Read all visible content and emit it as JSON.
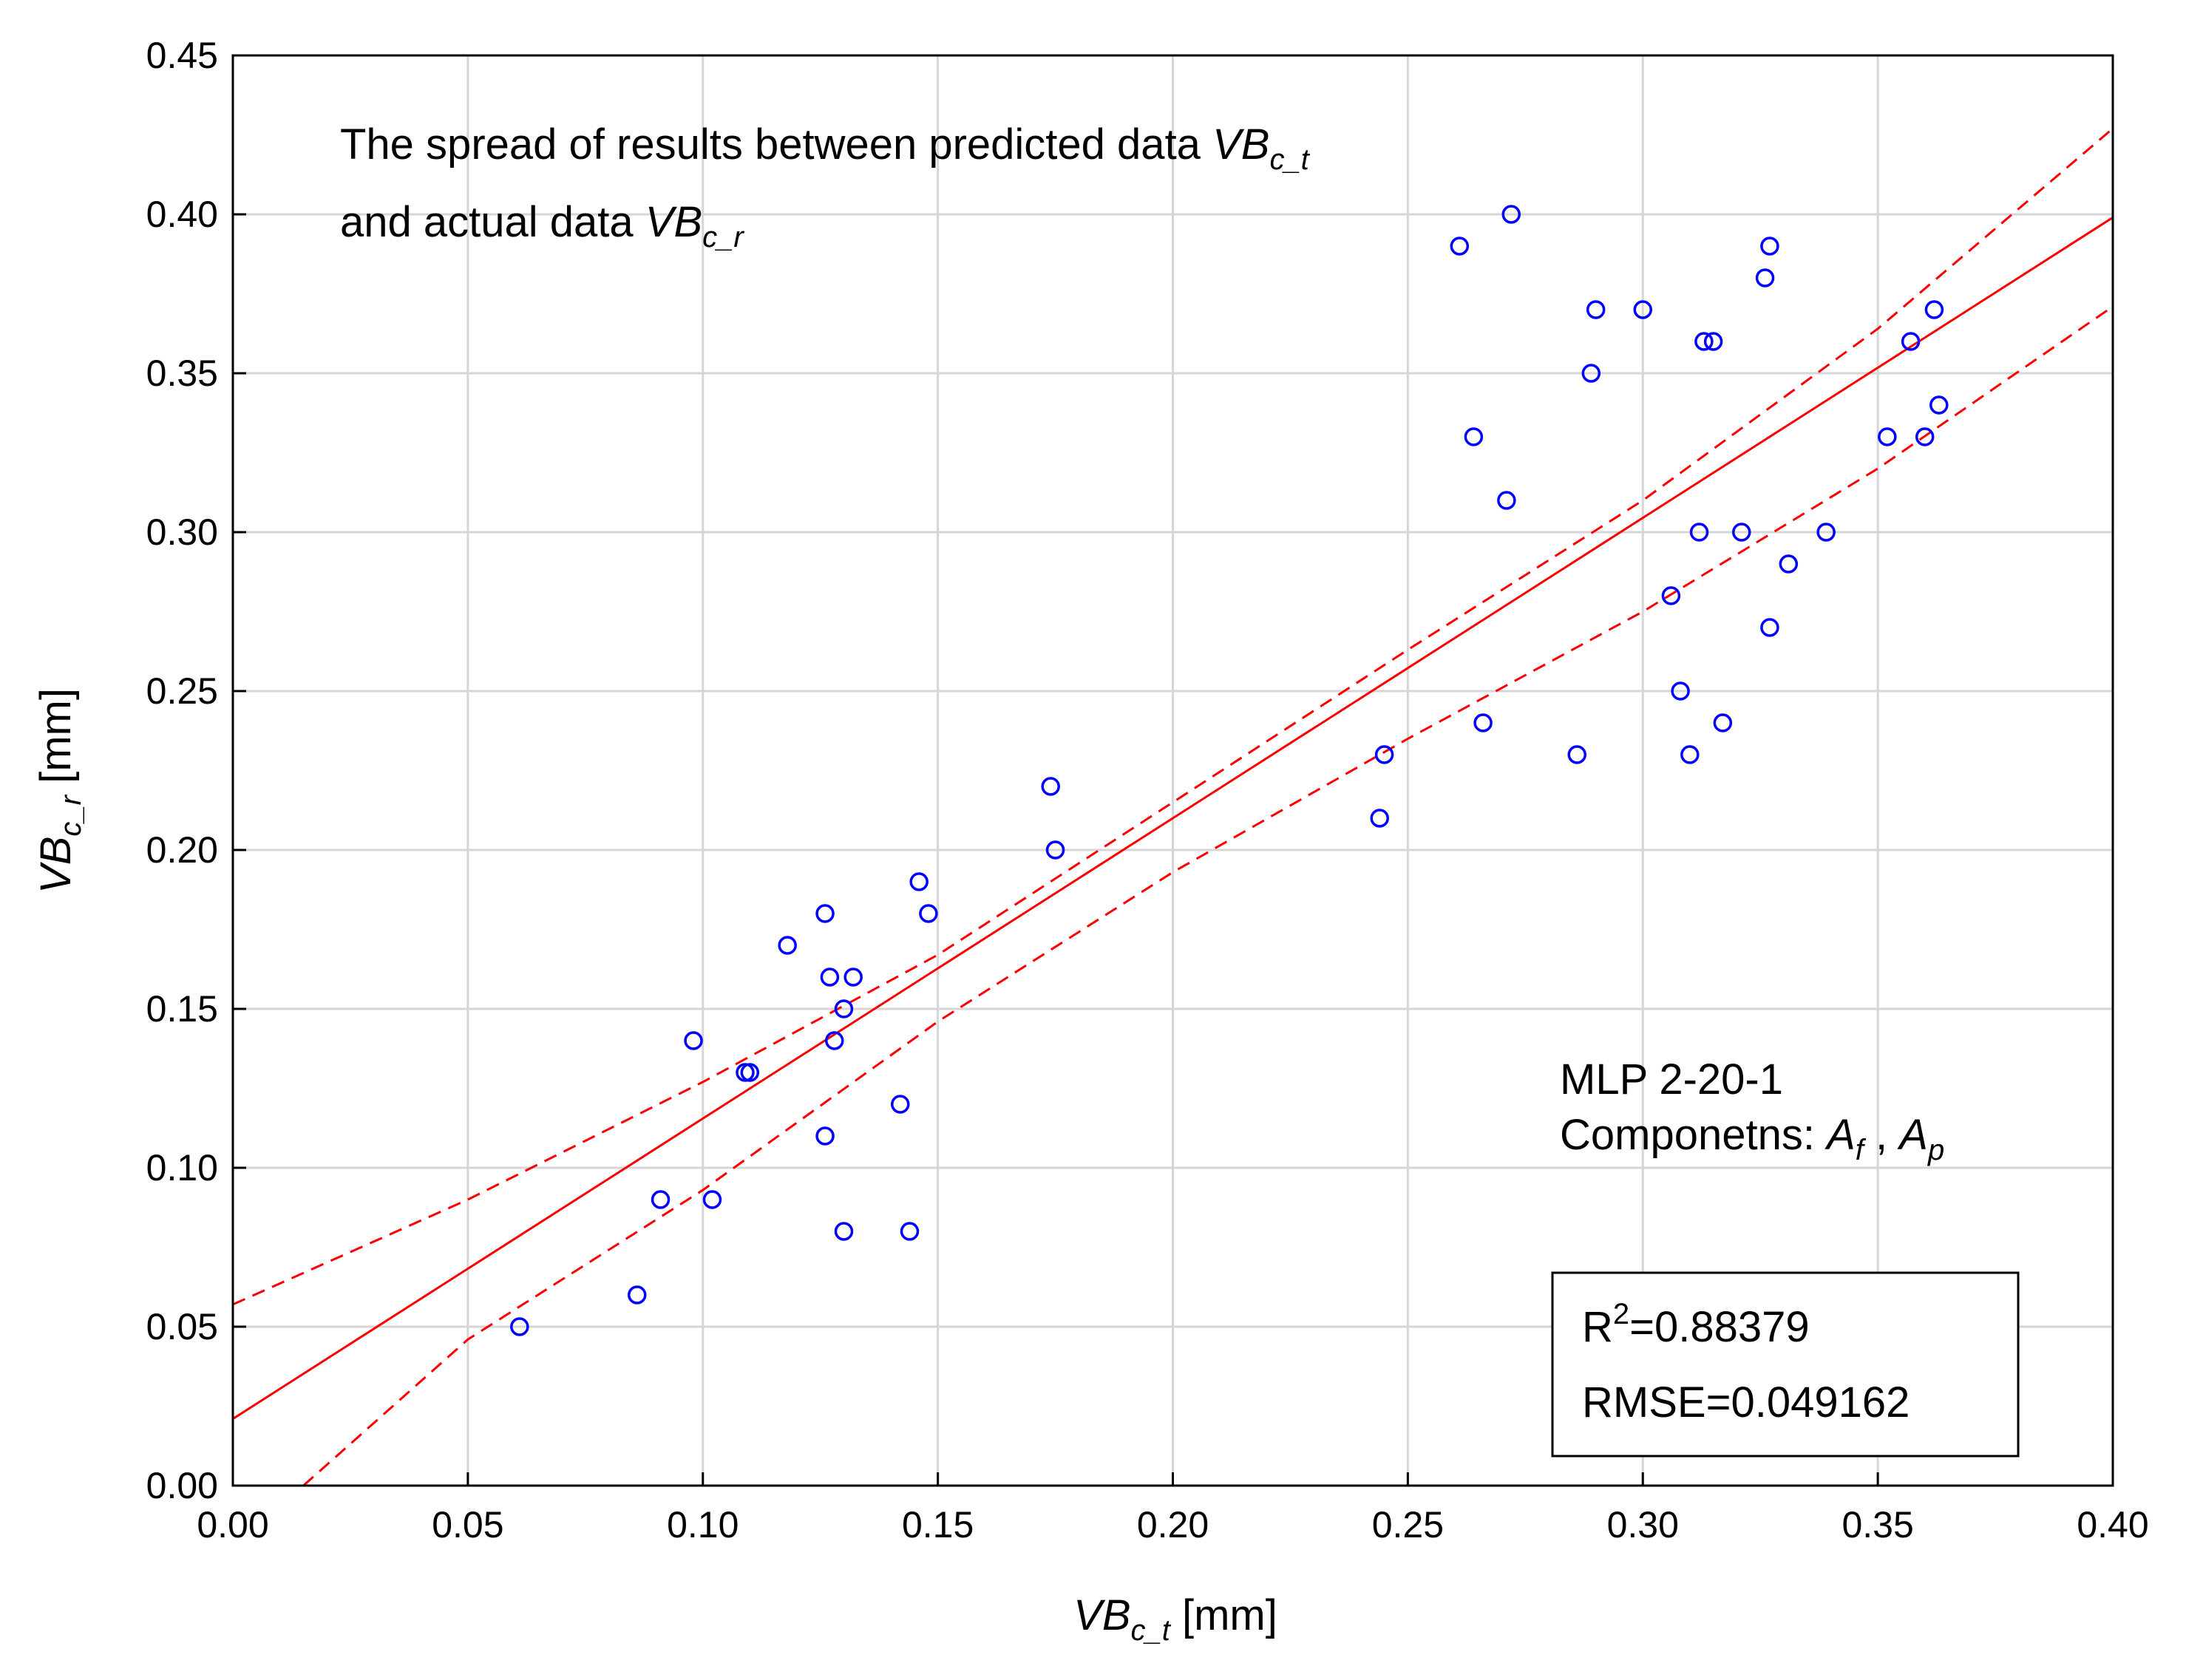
{
  "chart_data": {
    "type": "scatter",
    "xlim": [
      0,
      0.4
    ],
    "ylim": [
      0,
      0.45
    ],
    "grid": true,
    "x_ticks": [
      "0.00",
      "0.05",
      "0.10",
      "0.15",
      "0.20",
      "0.25",
      "0.30",
      "0.35",
      "0.40"
    ],
    "y_ticks": [
      "0.00",
      "0.05",
      "0.10",
      "0.15",
      "0.20",
      "0.25",
      "0.30",
      "0.35",
      "0.40",
      "0.45"
    ],
    "xlabel": {
      "main": "VB",
      "sub": "c_t",
      "unit": " [mm]"
    },
    "ylabel": {
      "main": "VB",
      "sub": "c_r",
      "unit": " [mm]"
    },
    "annotation_spread": {
      "line1_text": "The spread of results between predicted data ",
      "line1_var": "VB",
      "line1_sub": "c_t",
      "line2_text": "and actual data ",
      "line2_var": "VB",
      "line2_sub": "c_r"
    },
    "annotation_model": {
      "line1": "MLP 2-20-1",
      "line2_text": "Componetns: ",
      "comp1": "A",
      "comp1_sub": "f",
      "sep": " , ",
      "comp2": "A",
      "comp2_sub": "p"
    },
    "stats_box": {
      "r2_prefix": "R",
      "r2_sup": "2",
      "r2_value": "=0.88379",
      "rmse": "RMSE=0.049162"
    },
    "series": [
      {
        "color": "#0000ff",
        "marker": "circle-open",
        "points": [
          [
            0.061,
            0.05
          ],
          [
            0.086,
            0.06
          ],
          [
            0.091,
            0.09
          ],
          [
            0.098,
            0.14
          ],
          [
            0.102,
            0.09
          ],
          [
            0.109,
            0.13
          ],
          [
            0.11,
            0.13
          ],
          [
            0.118,
            0.17
          ],
          [
            0.126,
            0.11
          ],
          [
            0.126,
            0.18
          ],
          [
            0.127,
            0.16
          ],
          [
            0.128,
            0.14
          ],
          [
            0.13,
            0.15
          ],
          [
            0.13,
            0.08
          ],
          [
            0.132,
            0.16
          ],
          [
            0.142,
            0.12
          ],
          [
            0.144,
            0.08
          ],
          [
            0.146,
            0.19
          ],
          [
            0.148,
            0.18
          ],
          [
            0.174,
            0.22
          ],
          [
            0.175,
            0.2
          ],
          [
            0.244,
            0.21
          ],
          [
            0.245,
            0.23
          ],
          [
            0.261,
            0.39
          ],
          [
            0.264,
            0.33
          ],
          [
            0.266,
            0.24
          ],
          [
            0.271,
            0.31
          ],
          [
            0.272,
            0.4
          ],
          [
            0.286,
            0.23
          ],
          [
            0.289,
            0.35
          ],
          [
            0.29,
            0.37
          ],
          [
            0.3,
            0.37
          ],
          [
            0.306,
            0.28
          ],
          [
            0.308,
            0.25
          ],
          [
            0.31,
            0.23
          ],
          [
            0.312,
            0.3
          ],
          [
            0.313,
            0.36
          ],
          [
            0.315,
            0.36
          ],
          [
            0.317,
            0.24
          ],
          [
            0.321,
            0.3
          ],
          [
            0.326,
            0.38
          ],
          [
            0.327,
            0.39
          ],
          [
            0.327,
            0.27
          ],
          [
            0.331,
            0.29
          ],
          [
            0.339,
            0.3
          ],
          [
            0.352,
            0.33
          ],
          [
            0.357,
            0.36
          ],
          [
            0.36,
            0.33
          ],
          [
            0.362,
            0.37
          ],
          [
            0.363,
            0.34
          ]
        ]
      }
    ],
    "fit_line": {
      "color": "#ff0000",
      "intercept": 0.021,
      "slope": 0.945
    },
    "confidence_band": {
      "color": "#ff0000",
      "upper": [
        [
          0,
          0.057
        ],
        [
          0.05,
          0.09
        ],
        [
          0.1,
          0.127
        ],
        [
          0.15,
          0.167
        ],
        [
          0.2,
          0.215
        ],
        [
          0.25,
          0.263
        ],
        [
          0.3,
          0.31
        ],
        [
          0.35,
          0.364
        ],
        [
          0.4,
          0.427
        ]
      ],
      "lower": [
        [
          0.015,
          0
        ],
        [
          0.05,
          0.046
        ],
        [
          0.1,
          0.093
        ],
        [
          0.15,
          0.146
        ],
        [
          0.2,
          0.193
        ],
        [
          0.25,
          0.235
        ],
        [
          0.3,
          0.275
        ],
        [
          0.35,
          0.32
        ],
        [
          0.4,
          0.371
        ]
      ]
    }
  }
}
